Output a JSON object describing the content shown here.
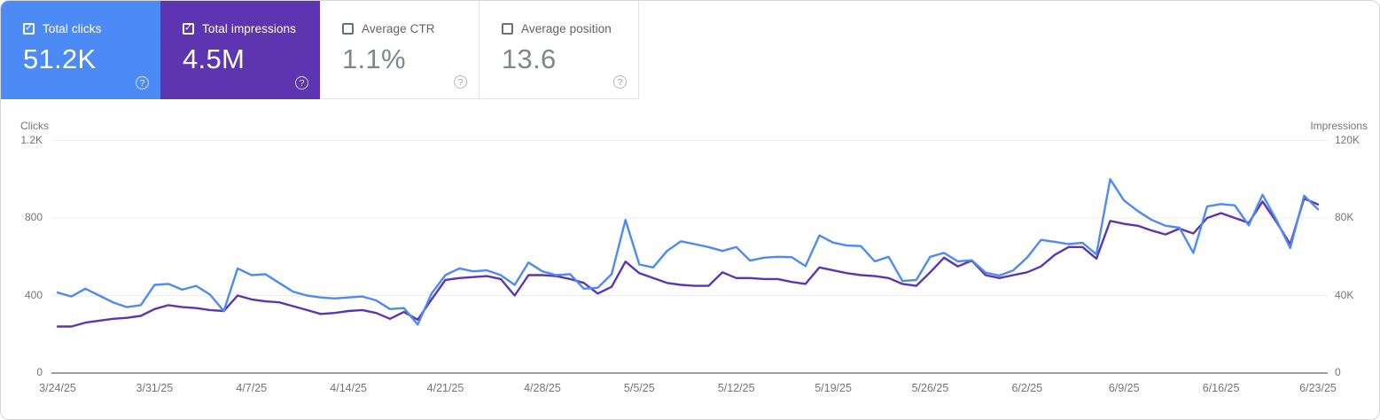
{
  "colors": {
    "blue": "#4c8bf5",
    "purple": "#5e35b1",
    "grid": "#ececec",
    "zero_axis": "#9aa0a6",
    "tick_text": "#757575"
  },
  "cards": [
    {
      "label": "Total clicks",
      "value": "51.2K",
      "checked": true,
      "theme": "blue",
      "help_glyph": "?"
    },
    {
      "label": "Total impressions",
      "value": "4.5M",
      "checked": true,
      "theme": "purple",
      "help_glyph": "?"
    },
    {
      "label": "Average CTR",
      "value": "1.1%",
      "checked": false,
      "theme": "plain",
      "help_glyph": "?"
    },
    {
      "label": "Average position",
      "value": "13.6",
      "checked": false,
      "theme": "plain",
      "help_glyph": "?"
    }
  ],
  "chart_data": {
    "type": "line",
    "start_date": "3/24/25",
    "end_date": "6/23/25",
    "points": 92,
    "grid": "horizontal-only",
    "x_tick_labels": [
      "3/24/25",
      "3/31/25",
      "4/7/25",
      "4/14/25",
      "4/21/25",
      "4/28/25",
      "5/5/25",
      "5/12/25",
      "5/19/25",
      "5/26/25",
      "6/2/25",
      "6/9/25",
      "6/16/25",
      "6/23/25"
    ],
    "left_axis": {
      "title": "Clicks",
      "max": 1200,
      "ticks": [
        {
          "label": "1.2K",
          "value": 1200
        },
        {
          "label": "800",
          "value": 800
        },
        {
          "label": "400",
          "value": 400
        },
        {
          "label": "0",
          "value": 0
        }
      ]
    },
    "right_axis": {
      "title": "Impressions",
      "max": 120000,
      "ticks": [
        {
          "label": "120K",
          "value": 120000
        },
        {
          "label": "80K",
          "value": 80000
        },
        {
          "label": "40K",
          "value": 40000
        },
        {
          "label": "0",
          "value": 0
        }
      ]
    },
    "series": [
      {
        "name": "Total clicks",
        "axis": "left",
        "color": "#4c8bf5",
        "values": [
          415,
          395,
          435,
          400,
          365,
          340,
          350,
          455,
          460,
          430,
          450,
          405,
          320,
          540,
          505,
          510,
          465,
          420,
          400,
          390,
          385,
          390,
          395,
          375,
          330,
          335,
          250,
          410,
          505,
          540,
          525,
          530,
          505,
          455,
          570,
          525,
          505,
          510,
          435,
          440,
          510,
          790,
          560,
          545,
          630,
          680,
          665,
          650,
          630,
          650,
          580,
          595,
          600,
          598,
          552,
          710,
          673,
          658,
          655,
          576,
          600,
          475,
          480,
          600,
          620,
          576,
          582,
          518,
          503,
          530,
          595,
          687,
          677,
          665,
          672,
          612,
          1000,
          890,
          835,
          790,
          760,
          750,
          620,
          860,
          872,
          865,
          762,
          920,
          790,
          645,
          915,
          845
        ]
      },
      {
        "name": "Total impressions",
        "axis": "right",
        "color": "#5e35b1",
        "values": [
          24000,
          24000,
          26000,
          27000,
          28000,
          28500,
          29500,
          33000,
          35000,
          34000,
          33500,
          32500,
          32000,
          40000,
          38000,
          37000,
          36500,
          34500,
          32500,
          30500,
          31000,
          32000,
          32500,
          31000,
          28000,
          31500,
          27500,
          38000,
          48000,
          49000,
          49500,
          50000,
          48500,
          40000,
          50500,
          50500,
          50000,
          48500,
          46500,
          41000,
          44500,
          57500,
          51500,
          49000,
          46500,
          45500,
          45000,
          45000,
          52000,
          49000,
          49000,
          48500,
          48500,
          47000,
          46000,
          54500,
          53000,
          51500,
          50500,
          50000,
          49000,
          46000,
          45000,
          52000,
          59500,
          55000,
          58000,
          50500,
          49000,
          50500,
          52000,
          55000,
          61000,
          65000,
          65000,
          59000,
          78500,
          77000,
          76000,
          73500,
          71500,
          74500,
          72000,
          80000,
          82500,
          80000,
          77500,
          88500,
          78000,
          66500,
          90000,
          87000
        ]
      }
    ]
  }
}
